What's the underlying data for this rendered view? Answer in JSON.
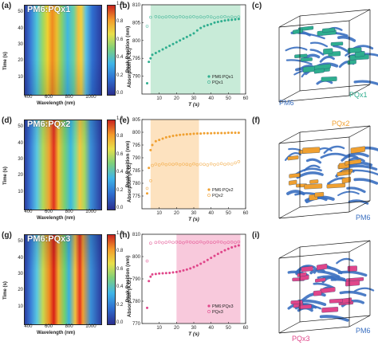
{
  "panels": {
    "a": {
      "label": "(a)",
      "tag": "PM6:PQx1"
    },
    "b": {
      "label": "(b)"
    },
    "c": {
      "label": "(c)",
      "donor": "PM6",
      "acceptor": "PQx1"
    },
    "d": {
      "label": "(d)",
      "tag": "PM6:PQx2"
    },
    "e": {
      "label": "(e)"
    },
    "f": {
      "label": "(f)",
      "donor": "PM6",
      "acceptor": "PQx2"
    },
    "g": {
      "label": "(g)",
      "tag": "PM6:PQx3"
    },
    "h": {
      "label": "(h)"
    },
    "i": {
      "label": "(i)",
      "donor": "PM6",
      "acceptor": "PQx3"
    }
  },
  "heatmap_axes": {
    "xlabel": "Wavelength (nm)",
    "ylabel": "Time (s)",
    "colorbar_label": "Absorption (A.U.)",
    "x_ticks": [
      "400",
      "600",
      "800",
      "1000"
    ],
    "colorbar_ticks": [
      "1.0",
      "0.8",
      "0.6",
      "0.4",
      "0.2",
      "0.0"
    ]
  },
  "colors": {
    "pqx1": "#2fae8f",
    "pqx2": "#f0a030",
    "pqx3": "#e0468a",
    "pm6": "#3a6fc0",
    "shade1": "#c8ebd8",
    "shade2": "#fde2bf",
    "shade3": "#f8c9dc"
  },
  "chart_data": [
    {
      "type": "heatmap",
      "panel": "a",
      "xlabel": "Wavelength (nm)",
      "ylabel": "Time (s)",
      "x_range": [
        350,
        1100
      ],
      "y_range": [
        0,
        55
      ],
      "y_ticks": [
        "10",
        "20",
        "30",
        "40",
        "50"
      ],
      "colorbar_range": [
        0.0,
        1.0
      ]
    },
    {
      "type": "scatter",
      "panel": "b",
      "xlabel": "T (s)",
      "ylabel": "Peak Position (nm)",
      "xlim": [
        0,
        60
      ],
      "ylim": [
        785,
        810
      ],
      "x_ticks": [
        10,
        20,
        30,
        40,
        50,
        60
      ],
      "y_ticks": [
        790,
        795,
        800,
        805,
        810
      ],
      "shaded_region": [
        5,
        57
      ],
      "series": [
        {
          "name": "PM6:PQx1",
          "x": [
            3,
            4,
            5,
            6,
            8,
            10,
            12,
            14,
            16,
            18,
            20,
            22,
            24,
            26,
            28,
            30,
            32,
            34,
            36,
            38,
            40,
            42,
            44,
            46,
            48,
            50,
            52,
            54,
            56
          ],
          "y": [
            788,
            794,
            795,
            796,
            796.5,
            797,
            797.5,
            798,
            798.5,
            799,
            799.5,
            800,
            800.5,
            801,
            801.5,
            802,
            802.8,
            803.5,
            804,
            804.3,
            804.6,
            805,
            805.2,
            805.4,
            805.6,
            805.7,
            805.8,
            805.9,
            806
          ]
        },
        {
          "name": "PQx1",
          "x": [
            3,
            5,
            8,
            10,
            12,
            14,
            16,
            18,
            20,
            22,
            24,
            26,
            28,
            30,
            32,
            34,
            36,
            38,
            40,
            42,
            44,
            46,
            48,
            50,
            52,
            54,
            56
          ],
          "y": [
            804,
            806.5,
            806.7,
            806.6,
            806.5,
            806.6,
            806.7,
            806.6,
            806.5,
            806.7,
            806.6,
            806.5,
            806.6,
            806.7,
            806.5,
            806.6,
            806.5,
            806.7,
            806.6,
            806.4,
            806.5,
            806.6,
            806.7,
            806.5,
            806.6,
            806.5,
            806.6
          ]
        }
      ]
    },
    {
      "type": "heatmap",
      "panel": "d",
      "xlabel": "Wavelength (nm)",
      "ylabel": "Time (s)",
      "x_range": [
        350,
        1100
      ],
      "y_range": [
        0,
        55
      ],
      "y_ticks": [
        "10",
        "20",
        "30",
        "40",
        "50"
      ],
      "colorbar_range": [
        0.0,
        1.0
      ]
    },
    {
      "type": "scatter",
      "panel": "e",
      "xlabel": "T (s)",
      "ylabel": "Peak Position (nm)",
      "xlim": [
        0,
        60
      ],
      "ylim": [
        770,
        805
      ],
      "x_ticks": [
        10,
        20,
        30,
        40,
        50,
        60
      ],
      "y_ticks": [
        775,
        780,
        785,
        790,
        795,
        800,
        805
      ],
      "shaded_region": [
        5,
        33
      ],
      "series": [
        {
          "name": "PM6:PQx2",
          "x": [
            3,
            4,
            5,
            6,
            8,
            10,
            12,
            14,
            16,
            18,
            20,
            22,
            24,
            26,
            28,
            30,
            32,
            34,
            36,
            38,
            40,
            42,
            44,
            46,
            48,
            50,
            52,
            54,
            56
          ],
          "y": [
            776,
            786,
            793,
            795,
            796.5,
            797,
            797.5,
            798,
            798.3,
            798.6,
            798.8,
            799,
            799.1,
            799.2,
            799.3,
            799.4,
            799.5,
            799.5,
            799.6,
            799.6,
            799.6,
            799.7,
            799.7,
            799.7,
            799.7,
            799.8,
            799.8,
            799.8,
            799.8
          ]
        },
        {
          "name": "PQx2",
          "x": [
            3,
            5,
            6,
            8,
            10,
            12,
            14,
            16,
            18,
            20,
            22,
            24,
            26,
            28,
            30,
            32,
            34,
            36,
            38,
            40,
            42,
            44,
            46,
            48,
            50,
            52,
            54,
            56
          ],
          "y": [
            778,
            781,
            787,
            787.5,
            787.2,
            787.6,
            787.3,
            787.5,
            787.4,
            787.6,
            787.3,
            787.5,
            787.4,
            787.2,
            787.6,
            787.3,
            787.5,
            787.4,
            787.2,
            787.6,
            787.3,
            787.5,
            787.7,
            787.4,
            787.6,
            787.5,
            788,
            788.5
          ]
        }
      ]
    },
    {
      "type": "heatmap",
      "panel": "g",
      "xlabel": "Wavelength (nm)",
      "ylabel": "Time (s)",
      "x_range": [
        350,
        1100
      ],
      "y_range": [
        0,
        55
      ],
      "y_ticks": [
        "10",
        "20",
        "30",
        "40",
        "50"
      ],
      "colorbar_range": [
        0.0,
        1.0
      ]
    },
    {
      "type": "scatter",
      "panel": "h",
      "xlabel": "T (s)",
      "ylabel": "Peak Position (nm)",
      "xlim": [
        0,
        60
      ],
      "ylim": [
        770,
        810
      ],
      "x_ticks": [
        10,
        20,
        30,
        40,
        50,
        60
      ],
      "y_ticks": [
        770,
        780,
        790,
        800,
        810
      ],
      "shaded_region": [
        20,
        57
      ],
      "series": [
        {
          "name": "PM6:PQx3",
          "x": [
            3,
            4,
            5,
            6,
            8,
            10,
            12,
            14,
            16,
            18,
            20,
            22,
            24,
            26,
            28,
            30,
            32,
            34,
            36,
            38,
            40,
            42,
            44,
            46,
            48,
            50,
            52,
            54,
            56
          ],
          "y": [
            777,
            789,
            791,
            792,
            792.2,
            792.4,
            792.5,
            792.6,
            792.7,
            792.9,
            793.1,
            793.4,
            793.8,
            794.2,
            794.7,
            795.3,
            796,
            796.8,
            797.6,
            798.5,
            799.4,
            800.3,
            801.2,
            802,
            802.8,
            803.5,
            804.1,
            804.6,
            805
          ]
        },
        {
          "name": "PQx3",
          "x": [
            3,
            5,
            8,
            10,
            12,
            14,
            16,
            18,
            20,
            22,
            24,
            26,
            28,
            30,
            32,
            34,
            36,
            38,
            40,
            42,
            44,
            46,
            48,
            50,
            52,
            54,
            56
          ],
          "y": [
            798,
            806,
            806.3,
            806.5,
            806.2,
            806.4,
            806.6,
            806.3,
            806.5,
            806.4,
            806.2,
            806.6,
            806.5,
            806.3,
            806.4,
            806.6,
            806.2,
            806.5,
            806.3,
            806.4,
            806.6,
            806.5,
            806.2,
            806.4,
            806.5,
            806.3,
            806.6
          ]
        }
      ]
    }
  ]
}
